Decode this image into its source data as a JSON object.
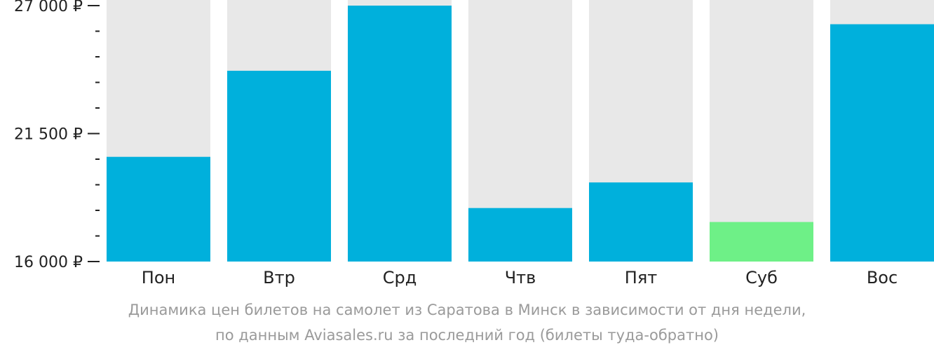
{
  "chart_data": {
    "type": "bar",
    "categories": [
      "Пон",
      "Втр",
      "Срд",
      "Чтв",
      "Пят",
      "Суб",
      "Вос"
    ],
    "values": [
      20500,
      24200,
      27000,
      18300,
      19400,
      17700,
      26200
    ],
    "ylim": [
      16000,
      27000
    ],
    "yticks": [
      {
        "value": 27000,
        "label": "27 000 ₽"
      },
      {
        "value": 21500,
        "label": "21 500 ₽"
      },
      {
        "value": 16000,
        "label": "16 000 ₽"
      }
    ],
    "minor_ticks": [
      25900,
      24800,
      23700,
      22600,
      20400,
      19300,
      18200,
      17100
    ],
    "highlight_index": 5,
    "colors": {
      "bar": "#00b0dc",
      "highlight": "#6ef087",
      "background": "#e8e8e8"
    },
    "caption": [
      "Динамика цен билетов на самолет из Саратова в Минск в зависимости от дня недели,",
      "по данным Aviasales.ru за последний год (билеты туда-обратно)"
    ]
  }
}
